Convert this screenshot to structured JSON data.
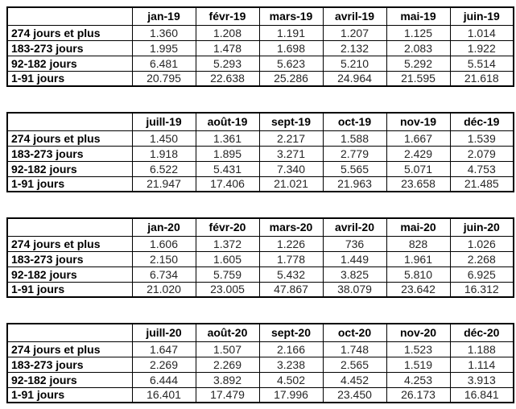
{
  "page": {
    "background": "#ffffff",
    "border_color": "#000000",
    "header_text_color": "#000000",
    "value_text_color": "#262626"
  },
  "tables": [
    {
      "name": "table-2019-first-half",
      "months": [
        "jan-19",
        "févr-19",
        "mars-19",
        "avril-19",
        "mai-19",
        "juin-19"
      ],
      "rows": [
        {
          "label": "274 jours et plus",
          "values": [
            "1.360",
            "1.208",
            "1.191",
            "1.207",
            "1.125",
            "1.014"
          ]
        },
        {
          "label": "183-273 jours",
          "values": [
            "1.995",
            "1.478",
            "1.698",
            "2.132",
            "2.083",
            "1.922"
          ]
        },
        {
          "label": "92-182 jours",
          "values": [
            "6.481",
            "5.293",
            "5.623",
            "5.210",
            "5.292",
            "5.514"
          ]
        },
        {
          "label": "1-91 jours",
          "values": [
            "20.795",
            "22.638",
            "25.286",
            "24.964",
            "21.595",
            "21.618"
          ]
        }
      ]
    },
    {
      "name": "table-2019-second-half",
      "months": [
        "juill-19",
        "août-19",
        "sept-19",
        "oct-19",
        "nov-19",
        "déc-19"
      ],
      "rows": [
        {
          "label": "274 jours et plus",
          "values": [
            "1.450",
            "1.361",
            "2.217",
            "1.588",
            "1.667",
            "1.539"
          ]
        },
        {
          "label": "183-273 jours",
          "values": [
            "1.918",
            "1.895",
            "3.271",
            "2.779",
            "2.429",
            "2.079"
          ]
        },
        {
          "label": "92-182 jours",
          "values": [
            "6.522",
            "5.431",
            "7.340",
            "5.565",
            "5.071",
            "4.753"
          ]
        },
        {
          "label": "1-91 jours",
          "values": [
            "21.947",
            "17.406",
            "21.021",
            "21.963",
            "23.658",
            "21.485"
          ]
        }
      ]
    },
    {
      "name": "table-2020-first-half",
      "months": [
        "jan-20",
        "févr-20",
        "mars-20",
        "avril-20",
        "mai-20",
        "juin-20"
      ],
      "rows": [
        {
          "label": "274 jours et plus",
          "values": [
            "1.606",
            "1.372",
            "1.226",
            "736",
            "828",
            "1.026"
          ]
        },
        {
          "label": "183-273 jours",
          "values": [
            "2.150",
            "1.605",
            "1.778",
            "1.449",
            "1.961",
            "2.268"
          ]
        },
        {
          "label": "92-182 jours",
          "values": [
            "6.734",
            "5.759",
            "5.432",
            "3.825",
            "5.810",
            "6.925"
          ]
        },
        {
          "label": "1-91 jours",
          "values": [
            "21.020",
            "23.005",
            "47.867",
            "38.079",
            "23.642",
            "16.312"
          ]
        }
      ]
    },
    {
      "name": "table-2020-second-half",
      "months": [
        "juill-20",
        "août-20",
        "sept-20",
        "oct-20",
        "nov-20",
        "déc-20"
      ],
      "rows": [
        {
          "label": "274 jours et plus",
          "values": [
            "1.647",
            "1.507",
            "2.166",
            "1.748",
            "1.523",
            "1.188"
          ]
        },
        {
          "label": "183-273 jours",
          "values": [
            "2.269",
            "2.269",
            "3.238",
            "2.565",
            "1.519",
            "1.114"
          ]
        },
        {
          "label": "92-182 jours",
          "values": [
            "6.444",
            "3.892",
            "4.502",
            "4.452",
            "4.253",
            "3.913"
          ]
        },
        {
          "label": "1-91 jours",
          "values": [
            "16.401",
            "17.479",
            "17.996",
            "23.450",
            "26.173",
            "16.841"
          ]
        }
      ]
    }
  ]
}
